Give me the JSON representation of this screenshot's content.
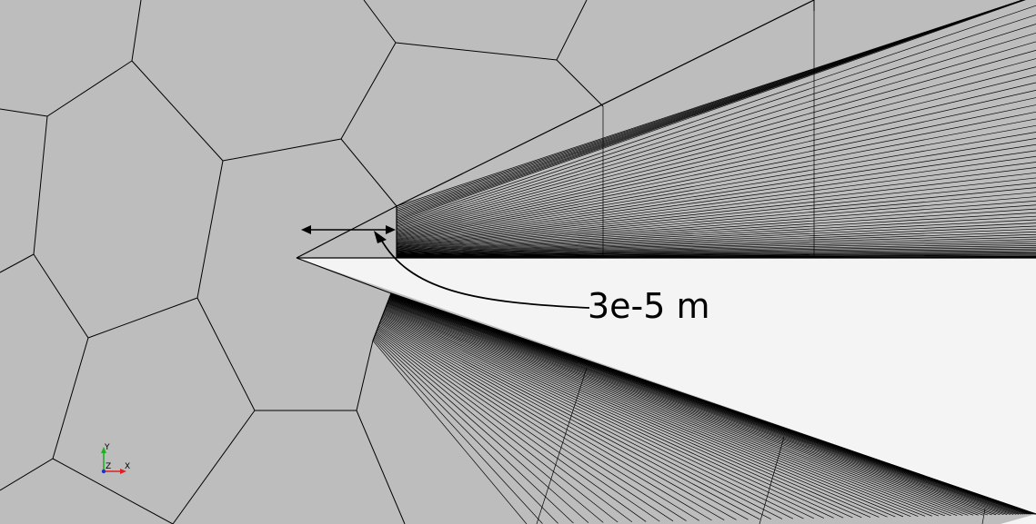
{
  "annotation": {
    "dimension_label": "3e-5 m"
  },
  "axes_triad": {
    "y_label": "Y",
    "z_label": "Z",
    "x_label": "X"
  },
  "colors": {
    "mesh_face": "#bdbdbd",
    "mesh_line": "#000000",
    "blade": "#f4f4f4",
    "axis_x": "#e02020",
    "axis_y": "#20b020",
    "axis_z": "#2030d0"
  }
}
